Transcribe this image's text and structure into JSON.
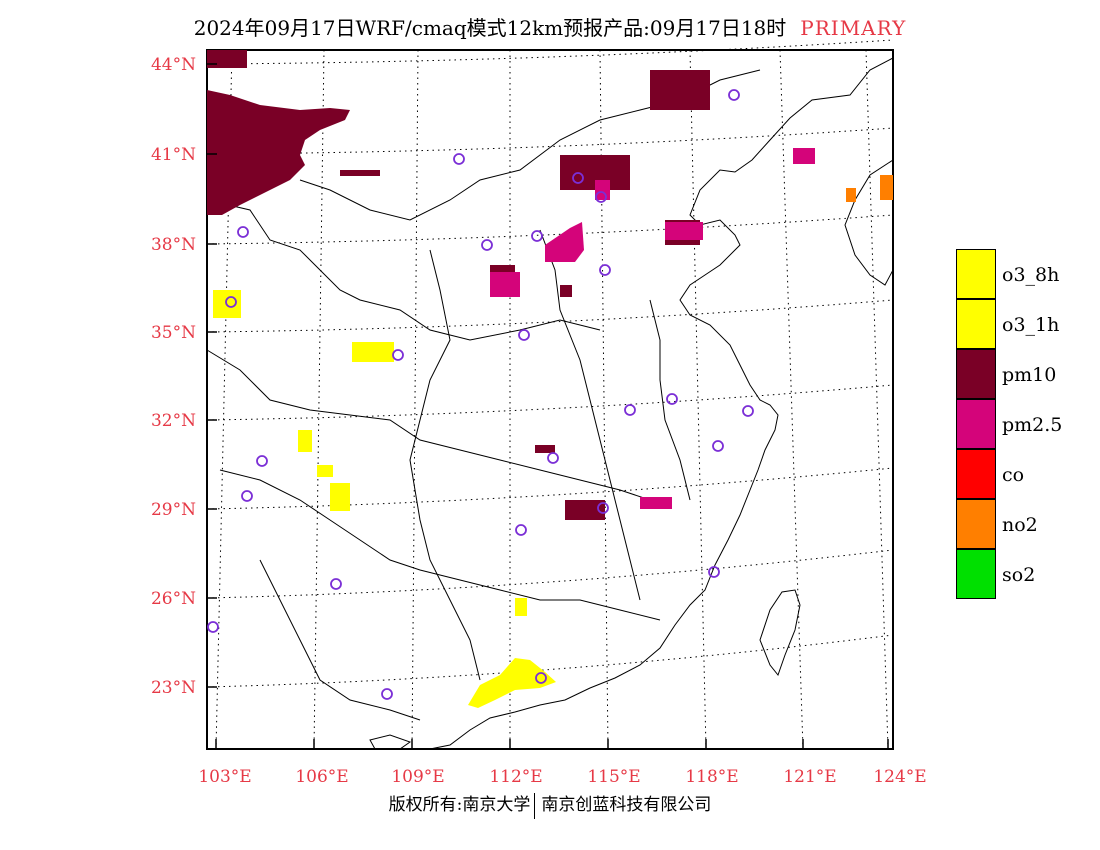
{
  "title": {
    "main": "2024年09月17日WRF/cmaq模式12km预报产品:09月17日18时",
    "tag": "PRIMARY"
  },
  "map": {
    "lat_labels": [
      "44°N",
      "41°N",
      "38°N",
      "35°N",
      "32°N",
      "29°N",
      "26°N",
      "23°N"
    ],
    "lon_labels": [
      "103°E",
      "106°E",
      "109°E",
      "112°E",
      "115°E",
      "118°E",
      "121°E",
      "124°E"
    ]
  },
  "legend": {
    "items": [
      {
        "label": "o3_8h",
        "color": "#ffff00"
      },
      {
        "label": "o3_1h",
        "color": "#ffff00"
      },
      {
        "label": "pm10",
        "color": "#7a0026"
      },
      {
        "label": "pm2.5",
        "color": "#d4047a"
      },
      {
        "label": "co",
        "color": "#ff0000"
      },
      {
        "label": "no2",
        "color": "#ff7f00"
      },
      {
        "label": "so2",
        "color": "#00e000"
      }
    ]
  },
  "copyright": {
    "left": "版权所有:南京大学",
    "right": "南京创蓝科技有限公司"
  },
  "colors": {
    "axis_label": "#e63946",
    "station_circle": "#7b2fd6"
  }
}
